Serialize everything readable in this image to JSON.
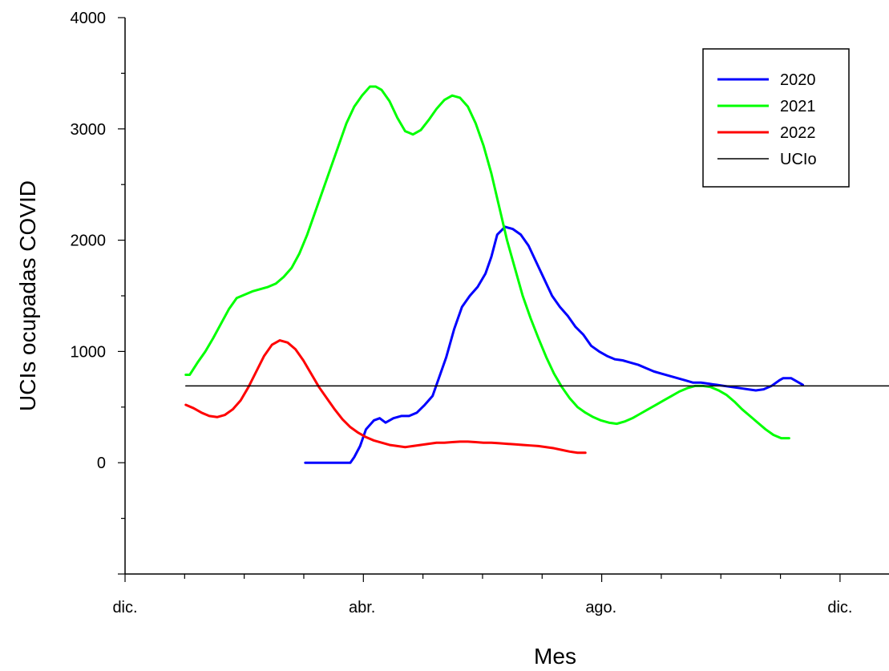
{
  "chart_data": {
    "type": "line",
    "title": "",
    "xlabel": "Mes",
    "ylabel": "UCIs ocupadas COVID",
    "xlim": [
      0,
      390
    ],
    "ylim": [
      -1000,
      4000
    ],
    "x_unit": "days since dic.",
    "x_ticks": [
      {
        "value": 0,
        "label": "dic."
      },
      {
        "value": 121,
        "label": "abr."
      },
      {
        "value": 243,
        "label": "ago."
      },
      {
        "value": 365,
        "label": "dic."
      }
    ],
    "y_ticks": [
      {
        "value": 0,
        "label": "0"
      },
      {
        "value": 1000,
        "label": "1000"
      },
      {
        "value": 2000,
        "label": "2000"
      },
      {
        "value": 3000,
        "label": "3000"
      },
      {
        "value": 4000,
        "label": "4000"
      }
    ],
    "grid": false,
    "legend_position": "top-right",
    "series": [
      {
        "name": "2020",
        "color": "#0000ff",
        "width": 3,
        "points": [
          [
            92,
            0
          ],
          [
            115,
            0
          ],
          [
            117,
            50
          ],
          [
            120,
            150
          ],
          [
            123,
            300
          ],
          [
            127,
            380
          ],
          [
            130,
            400
          ],
          [
            133,
            360
          ],
          [
            137,
            400
          ],
          [
            141,
            420
          ],
          [
            145,
            420
          ],
          [
            149,
            450
          ],
          [
            153,
            520
          ],
          [
            157,
            600
          ],
          [
            160,
            750
          ],
          [
            164,
            950
          ],
          [
            168,
            1200
          ],
          [
            172,
            1400
          ],
          [
            176,
            1500
          ],
          [
            180,
            1580
          ],
          [
            184,
            1700
          ],
          [
            187,
            1850
          ],
          [
            190,
            2050
          ],
          [
            194,
            2120
          ],
          [
            198,
            2100
          ],
          [
            202,
            2050
          ],
          [
            206,
            1950
          ],
          [
            210,
            1800
          ],
          [
            214,
            1650
          ],
          [
            218,
            1500
          ],
          [
            222,
            1400
          ],
          [
            226,
            1320
          ],
          [
            230,
            1220
          ],
          [
            234,
            1150
          ],
          [
            238,
            1050
          ],
          [
            242,
            1000
          ],
          [
            246,
            960
          ],
          [
            250,
            930
          ],
          [
            254,
            920
          ],
          [
            258,
            900
          ],
          [
            262,
            880
          ],
          [
            266,
            850
          ],
          [
            270,
            820
          ],
          [
            274,
            800
          ],
          [
            278,
            780
          ],
          [
            282,
            760
          ],
          [
            286,
            740
          ],
          [
            290,
            720
          ],
          [
            294,
            720
          ],
          [
            298,
            710
          ],
          [
            302,
            700
          ],
          [
            306,
            690
          ],
          [
            310,
            680
          ],
          [
            314,
            670
          ],
          [
            318,
            660
          ],
          [
            322,
            650
          ],
          [
            326,
            660
          ],
          [
            330,
            690
          ],
          [
            334,
            740
          ],
          [
            336,
            760
          ],
          [
            340,
            760
          ],
          [
            346,
            700
          ]
        ]
      },
      {
        "name": "2021",
        "color": "#00ff00",
        "width": 3,
        "points": [
          [
            31,
            790
          ],
          [
            33,
            790
          ],
          [
            37,
            900
          ],
          [
            41,
            1000
          ],
          [
            45,
            1120
          ],
          [
            49,
            1250
          ],
          [
            53,
            1380
          ],
          [
            57,
            1480
          ],
          [
            61,
            1510
          ],
          [
            65,
            1540
          ],
          [
            69,
            1560
          ],
          [
            73,
            1580
          ],
          [
            77,
            1610
          ],
          [
            81,
            1670
          ],
          [
            85,
            1750
          ],
          [
            89,
            1880
          ],
          [
            93,
            2050
          ],
          [
            97,
            2250
          ],
          [
            101,
            2450
          ],
          [
            105,
            2650
          ],
          [
            109,
            2850
          ],
          [
            113,
            3050
          ],
          [
            117,
            3200
          ],
          [
            121,
            3300
          ],
          [
            125,
            3380
          ],
          [
            128,
            3380
          ],
          [
            131,
            3350
          ],
          [
            135,
            3250
          ],
          [
            139,
            3100
          ],
          [
            143,
            2980
          ],
          [
            147,
            2950
          ],
          [
            151,
            2990
          ],
          [
            155,
            3080
          ],
          [
            159,
            3180
          ],
          [
            163,
            3260
          ],
          [
            167,
            3300
          ],
          [
            171,
            3280
          ],
          [
            175,
            3200
          ],
          [
            179,
            3050
          ],
          [
            183,
            2850
          ],
          [
            187,
            2600
          ],
          [
            191,
            2300
          ],
          [
            195,
            2000
          ],
          [
            199,
            1750
          ],
          [
            203,
            1500
          ],
          [
            207,
            1300
          ],
          [
            211,
            1120
          ],
          [
            215,
            950
          ],
          [
            219,
            800
          ],
          [
            223,
            680
          ],
          [
            227,
            580
          ],
          [
            231,
            500
          ],
          [
            235,
            450
          ],
          [
            239,
            410
          ],
          [
            243,
            380
          ],
          [
            247,
            360
          ],
          [
            251,
            350
          ],
          [
            255,
            370
          ],
          [
            259,
            400
          ],
          [
            263,
            440
          ],
          [
            267,
            480
          ],
          [
            271,
            520
          ],
          [
            275,
            560
          ],
          [
            279,
            600
          ],
          [
            283,
            640
          ],
          [
            287,
            670
          ],
          [
            291,
            690
          ],
          [
            295,
            690
          ],
          [
            299,
            680
          ],
          [
            303,
            650
          ],
          [
            307,
            610
          ],
          [
            311,
            550
          ],
          [
            315,
            480
          ],
          [
            319,
            420
          ],
          [
            323,
            360
          ],
          [
            327,
            300
          ],
          [
            331,
            250
          ],
          [
            335,
            220
          ],
          [
            339,
            220
          ]
        ]
      },
      {
        "name": "2022",
        "color": "#ff0000",
        "width": 3,
        "points": [
          [
            31,
            520
          ],
          [
            35,
            490
          ],
          [
            39,
            450
          ],
          [
            43,
            420
          ],
          [
            47,
            410
          ],
          [
            51,
            430
          ],
          [
            55,
            480
          ],
          [
            59,
            560
          ],
          [
            63,
            680
          ],
          [
            67,
            820
          ],
          [
            71,
            960
          ],
          [
            75,
            1060
          ],
          [
            79,
            1100
          ],
          [
            83,
            1080
          ],
          [
            87,
            1020
          ],
          [
            91,
            920
          ],
          [
            95,
            800
          ],
          [
            99,
            680
          ],
          [
            103,
            580
          ],
          [
            107,
            480
          ],
          [
            111,
            390
          ],
          [
            115,
            320
          ],
          [
            119,
            270
          ],
          [
            123,
            230
          ],
          [
            127,
            200
          ],
          [
            131,
            180
          ],
          [
            135,
            160
          ],
          [
            139,
            150
          ],
          [
            143,
            140
          ],
          [
            147,
            150
          ],
          [
            151,
            160
          ],
          [
            155,
            170
          ],
          [
            159,
            180
          ],
          [
            163,
            180
          ],
          [
            167,
            185
          ],
          [
            171,
            190
          ],
          [
            175,
            190
          ],
          [
            179,
            185
          ],
          [
            183,
            180
          ],
          [
            187,
            180
          ],
          [
            191,
            175
          ],
          [
            195,
            170
          ],
          [
            199,
            165
          ],
          [
            203,
            160
          ],
          [
            207,
            155
          ],
          [
            211,
            150
          ],
          [
            215,
            140
          ],
          [
            219,
            130
          ],
          [
            223,
            115
          ],
          [
            227,
            100
          ],
          [
            231,
            90
          ],
          [
            235,
            90
          ]
        ]
      },
      {
        "name": "UCIo",
        "color": "#000000",
        "width": 1.5,
        "points": [
          [
            31,
            690
          ],
          [
            390,
            690
          ]
        ]
      }
    ]
  }
}
